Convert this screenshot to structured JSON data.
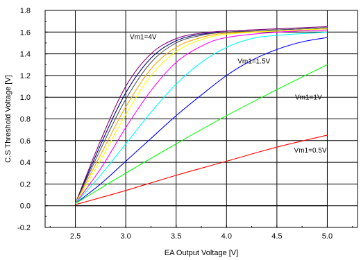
{
  "chart_data": {
    "type": "line",
    "xlabel": "EA Output Voltage [V]",
    "ylabel": "C.S Threshold Voltage [V]",
    "xlim": [
      2.2,
      5.3
    ],
    "ylim": [
      -0.2,
      1.8
    ],
    "xticks": [
      "2.5",
      "3.0",
      "3.5",
      "4.0",
      "4.5",
      "5.0"
    ],
    "yticks": [
      "-0.2",
      "0.0",
      "0.2",
      "0.4",
      "0.6",
      "0.8",
      "1.0",
      "1.2",
      "1.4",
      "1.6",
      "1.8"
    ],
    "xtick_values": [
      2.5,
      3.0,
      3.5,
      4.0,
      4.5,
      5.0
    ],
    "ytick_values": [
      -0.2,
      0.0,
      0.2,
      0.4,
      0.6,
      0.8,
      1.0,
      1.2,
      1.4,
      1.6,
      1.8
    ],
    "grid": true,
    "series": [
      {
        "color": "#7f007f",
        "x": [
          2.5,
          2.75,
          3.0,
          3.25,
          3.5,
          3.75,
          4.0,
          4.5,
          5.0
        ],
        "y": [
          0.02,
          0.6,
          1.1,
          1.4,
          1.54,
          1.59,
          1.61,
          1.63,
          1.65
        ]
      },
      {
        "color": "#00007f",
        "x": [
          2.5,
          2.75,
          3.0,
          3.25,
          3.5,
          3.75,
          4.0,
          4.5,
          5.0
        ],
        "y": [
          0.02,
          0.56,
          1.04,
          1.36,
          1.52,
          1.58,
          1.6,
          1.62,
          1.64
        ]
      },
      {
        "color": "#555555",
        "x": [
          2.5,
          2.75,
          3.0,
          3.25,
          3.5,
          3.75,
          4.0,
          4.5,
          5.0
        ],
        "y": [
          0.02,
          0.52,
          0.98,
          1.32,
          1.5,
          1.57,
          1.6,
          1.62,
          1.64
        ]
      },
      {
        "color": "#ffa500",
        "x": [
          2.5,
          2.75,
          3.0,
          3.25,
          3.5,
          3.75,
          4.0,
          4.5,
          5.0
        ],
        "y": [
          0.02,
          0.47,
          0.91,
          1.26,
          1.46,
          1.55,
          1.59,
          1.61,
          1.63
        ]
      },
      {
        "color": "#ffff00",
        "x": [
          2.5,
          2.75,
          3.0,
          3.25,
          3.5,
          3.75,
          4.0,
          4.5,
          5.0
        ],
        "y": [
          0.02,
          0.42,
          0.84,
          1.2,
          1.42,
          1.53,
          1.58,
          1.61,
          1.63
        ]
      },
      {
        "color": "#ff00ff",
        "x": [
          2.5,
          2.75,
          3.0,
          3.25,
          3.5,
          3.75,
          4.0,
          4.5,
          5.0
        ],
        "y": [
          0.02,
          0.34,
          0.72,
          1.06,
          1.32,
          1.47,
          1.55,
          1.6,
          1.62
        ]
      },
      {
        "color": "#00ffff",
        "x": [
          2.5,
          2.75,
          3.0,
          3.25,
          3.5,
          3.75,
          4.0,
          4.25,
          4.5,
          5.0
        ],
        "y": [
          0.02,
          0.28,
          0.57,
          0.86,
          1.12,
          1.32,
          1.46,
          1.54,
          1.57,
          1.6
        ]
      },
      {
        "name": "Vm1=1.5V",
        "color": "#0000ff",
        "x": [
          2.5,
          2.75,
          3.0,
          3.25,
          3.5,
          3.75,
          4.0,
          4.25,
          4.5,
          4.75,
          5.0
        ],
        "y": [
          0.02,
          0.2,
          0.41,
          0.62,
          0.83,
          1.02,
          1.2,
          1.34,
          1.44,
          1.51,
          1.55
        ]
      },
      {
        "name": "Vm1=1V",
        "color": "#00ff00",
        "x": [
          2.5,
          3.0,
          3.5,
          4.0,
          4.5,
          5.0
        ],
        "y": [
          0.02,
          0.3,
          0.57,
          0.83,
          1.07,
          1.3
        ]
      },
      {
        "name": "Vm1=0.5V",
        "color": "#ff0000",
        "x": [
          2.5,
          3.0,
          3.5,
          4.0,
          4.5,
          5.0
        ],
        "y": [
          0.01,
          0.14,
          0.28,
          0.41,
          0.54,
          0.65
        ]
      },
      {
        "color": "#000000",
        "x": [
          2.5,
          5.0
        ],
        "y": [
          0.0,
          0.0
        ]
      }
    ],
    "annotations": [
      {
        "text": "Vm1=4V",
        "x": 3.04,
        "y": 1.535
      },
      {
        "text": "Vm1=1.5V",
        "x": 4.11,
        "y": 1.31
      },
      {
        "text": "Vm1=1V",
        "x": 4.68,
        "y": 0.98
      },
      {
        "text": "Vm1=0.5V",
        "x": 4.67,
        "y": 0.49
      }
    ]
  }
}
